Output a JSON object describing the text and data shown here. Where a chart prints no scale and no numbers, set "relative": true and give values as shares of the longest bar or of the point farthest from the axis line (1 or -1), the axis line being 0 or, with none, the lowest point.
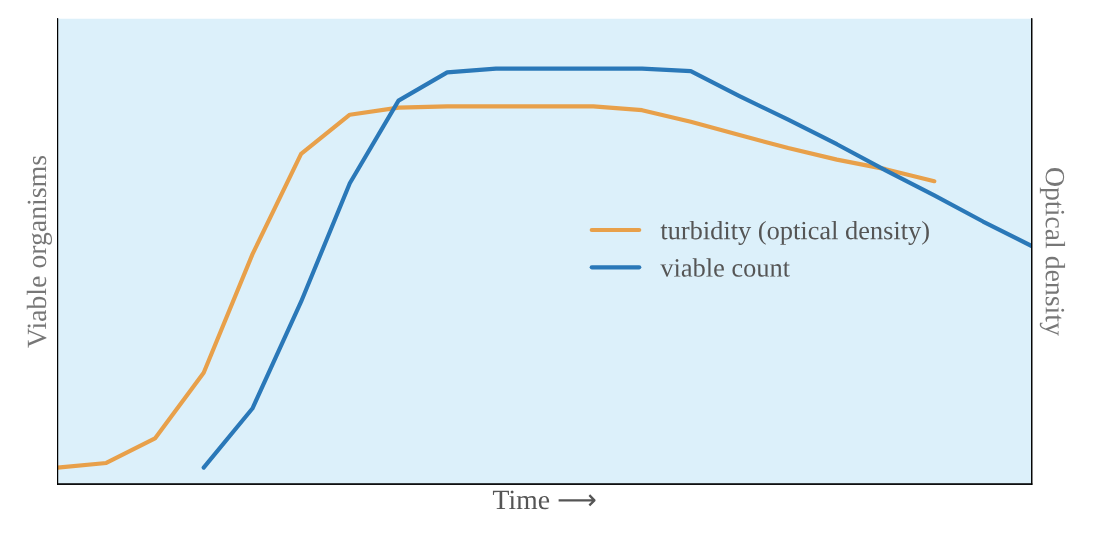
{
  "chart_data": {
    "type": "line",
    "relative": true,
    "xlabel": "Time ⟶",
    "ylabel": "Viable organisms",
    "y2label": "Optical density",
    "categories": [
      null,
      null,
      null,
      null,
      null,
      null,
      null,
      null,
      null,
      null,
      null,
      null,
      null,
      null,
      null,
      null,
      null,
      null,
      null,
      null,
      null
    ],
    "series": [
      {
        "name": "turbidity (optical density)",
        "color": "#e8a04a",
        "values": [
          0.04,
          0.051,
          0.11,
          0.268,
          0.553,
          0.795,
          0.889,
          0.906,
          0.909,
          0.909,
          0.909,
          0.909,
          0.9,
          0.872,
          0.84,
          0.809,
          0.781,
          0.758,
          0.729,
          null,
          null
        ]
      },
      {
        "name": "viable count",
        "color": "#2a78b8",
        "values": [
          null,
          null,
          null,
          0.04,
          0.182,
          0.439,
          0.724,
          0.923,
          0.991,
          1,
          1,
          1,
          1,
          0.994,
          0.934,
          0.877,
          0.818,
          0.755,
          0.695,
          0.632,
          0.573
        ]
      }
    ],
    "legend": "center right"
  }
}
